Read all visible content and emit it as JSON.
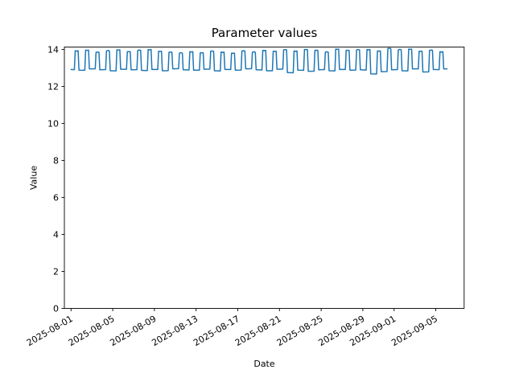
{
  "chart_data": {
    "type": "line",
    "title": "Parameter values",
    "xlabel": "Date",
    "ylabel": "Value",
    "legend": "none",
    "grid": false,
    "line_color": "#1f77b4",
    "axis_color": "#000000",
    "text_color": "#000000",
    "background_color": "#ffffff",
    "start_date": "2025-08-01",
    "xlim_days": [
      -0.64,
      37.72
    ],
    "ylim": [
      0,
      14.13
    ],
    "y_ticks": [
      0,
      2,
      4,
      6,
      8,
      10,
      12,
      14
    ],
    "x_ticks": [
      {
        "label": "2025-08-01",
        "day": 0
      },
      {
        "label": "2025-08-05",
        "day": 4
      },
      {
        "label": "2025-08-09",
        "day": 8
      },
      {
        "label": "2025-08-13",
        "day": 12
      },
      {
        "label": "2025-08-17",
        "day": 16
      },
      {
        "label": "2025-08-21",
        "day": 20
      },
      {
        "label": "2025-08-25",
        "day": 24
      },
      {
        "label": "2025-08-29",
        "day": 28
      },
      {
        "label": "2025-09-01",
        "day": 31
      },
      {
        "label": "2025-09-05",
        "day": 35
      }
    ],
    "waveform": {
      "shape": "daily-square-pulse",
      "baseline_end_frac": 0.32,
      "pulse_start_frac": 0.4,
      "pulse_end_frac": 0.68,
      "baseline_return_frac": 0.76
    },
    "series": [
      {
        "name": "parameter",
        "days": [
          {
            "date": "2025-08-01",
            "low": 12.92,
            "high": 13.93
          },
          {
            "date": "2025-08-02",
            "low": 12.88,
            "high": 13.96
          },
          {
            "date": "2025-08-03",
            "low": 12.95,
            "high": 13.85
          },
          {
            "date": "2025-08-04",
            "low": 12.9,
            "high": 13.92
          },
          {
            "date": "2025-08-05",
            "low": 12.85,
            "high": 13.98
          },
          {
            "date": "2025-08-06",
            "low": 12.93,
            "high": 13.88
          },
          {
            "date": "2025-08-07",
            "low": 12.9,
            "high": 13.95
          },
          {
            "date": "2025-08-08",
            "low": 12.87,
            "high": 14.0
          },
          {
            "date": "2025-08-09",
            "low": 12.92,
            "high": 13.9
          },
          {
            "date": "2025-08-10",
            "low": 12.85,
            "high": 13.85
          },
          {
            "date": "2025-08-11",
            "low": 12.95,
            "high": 13.8
          },
          {
            "date": "2025-08-12",
            "low": 12.9,
            "high": 13.88
          },
          {
            "date": "2025-08-13",
            "low": 12.88,
            "high": 13.82
          },
          {
            "date": "2025-08-14",
            "low": 12.93,
            "high": 13.9
          },
          {
            "date": "2025-08-15",
            "low": 12.85,
            "high": 13.86
          },
          {
            "date": "2025-08-16",
            "low": 12.92,
            "high": 13.8
          },
          {
            "date": "2025-08-17",
            "low": 12.88,
            "high": 13.92
          },
          {
            "date": "2025-08-18",
            "low": 12.95,
            "high": 13.85
          },
          {
            "date": "2025-08-19",
            "low": 12.9,
            "high": 13.95
          },
          {
            "date": "2025-08-20",
            "low": 12.85,
            "high": 13.9
          },
          {
            "date": "2025-08-21",
            "low": 12.93,
            "high": 13.98
          },
          {
            "date": "2025-08-22",
            "low": 12.75,
            "high": 13.92
          },
          {
            "date": "2025-08-23",
            "low": 12.88,
            "high": 14.0
          },
          {
            "date": "2025-08-24",
            "low": 12.82,
            "high": 13.95
          },
          {
            "date": "2025-08-25",
            "low": 12.9,
            "high": 13.85
          },
          {
            "date": "2025-08-26",
            "low": 12.85,
            "high": 14.02
          },
          {
            "date": "2025-08-27",
            "low": 12.92,
            "high": 13.95
          },
          {
            "date": "2025-08-28",
            "low": 12.88,
            "high": 13.98
          },
          {
            "date": "2025-08-29",
            "low": 12.9,
            "high": 14.0
          },
          {
            "date": "2025-08-30",
            "low": 12.68,
            "high": 13.92
          },
          {
            "date": "2025-08-31",
            "low": 12.8,
            "high": 14.05
          },
          {
            "date": "2025-09-01",
            "low": 12.9,
            "high": 13.98
          },
          {
            "date": "2025-09-02",
            "low": 12.85,
            "high": 14.02
          },
          {
            "date": "2025-09-03",
            "low": 12.95,
            "high": 13.9
          },
          {
            "date": "2025-09-04",
            "low": 12.78,
            "high": 13.95
          },
          {
            "date": "2025-09-05",
            "low": 12.92,
            "high": 13.88
          }
        ],
        "tail": {
          "day_offset": 36.08,
          "value": 12.95
        }
      }
    ]
  }
}
